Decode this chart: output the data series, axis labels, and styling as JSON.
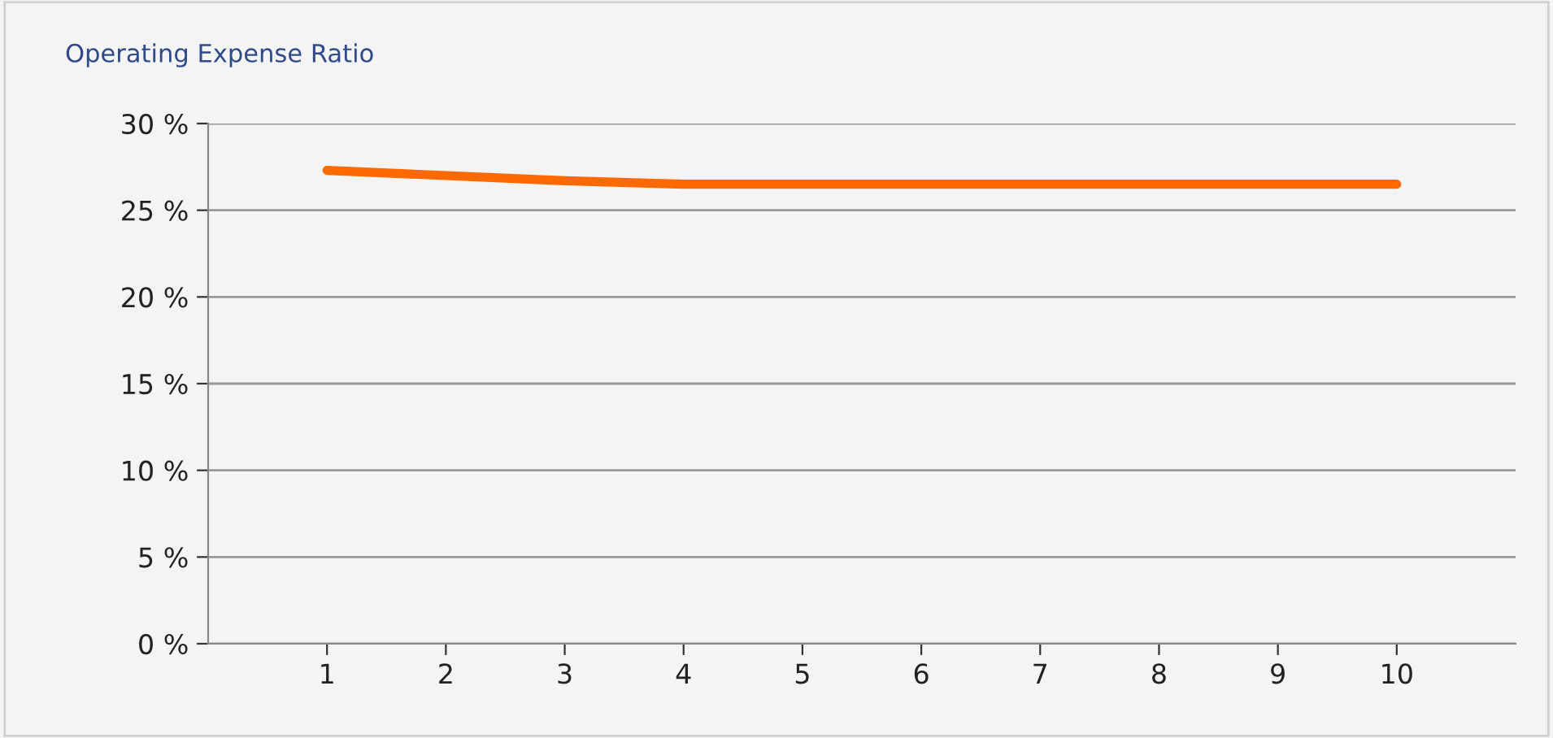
{
  "chart_data": {
    "type": "line",
    "title": "Operating Expense Ratio",
    "x": [
      1,
      2,
      3,
      4,
      5,
      6,
      7,
      8,
      9,
      10
    ],
    "series": [
      {
        "color": "#ff6a00",
        "values": [
          27.3,
          27.0,
          26.7,
          26.5,
          26.5,
          26.5,
          26.5,
          26.5,
          26.5,
          26.5
        ]
      }
    ],
    "xlim": [
      0,
      11
    ],
    "xticks": [
      1,
      2,
      3,
      4,
      5,
      6,
      7,
      8,
      9,
      10
    ],
    "ylim": [
      0,
      30
    ],
    "yticks": [
      {
        "value": 0,
        "label": "0 %"
      },
      {
        "value": 5,
        "label": "5 %"
      },
      {
        "value": 10,
        "label": "10 %"
      },
      {
        "value": 15,
        "label": "15 %"
      },
      {
        "value": 20,
        "label": "20 %"
      },
      {
        "value": 25,
        "label": "25 %"
      },
      {
        "value": 30,
        "label": "30 %"
      }
    ],
    "grid": "y",
    "marker": "none",
    "line_style": "solid"
  }
}
